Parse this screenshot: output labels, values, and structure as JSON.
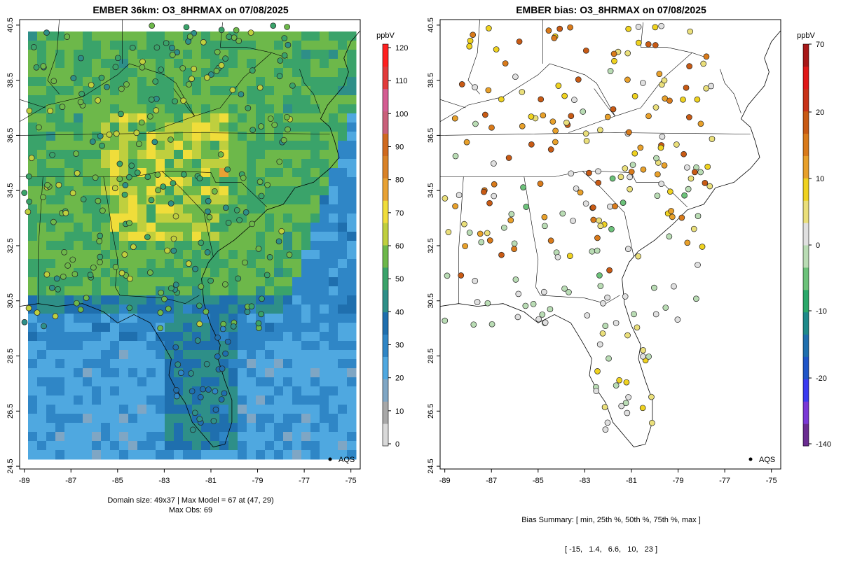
{
  "left_panel": {
    "title": "EMBER 36km: O3_8HRMAX on 07/08/2025",
    "footer_line1": "Domain size: 49x37 | Max Model = 67 at (47, 29)",
    "footer_line2": "Max Obs: 69",
    "legend_label": "AQS",
    "unit": "ppbV",
    "colorbar_ticks": [
      "0",
      "10",
      "20",
      "30",
      "40",
      "50",
      "60",
      "70",
      "80",
      "90",
      "100",
      "110",
      "120"
    ],
    "colorbar_colors": [
      "#d9d9d9",
      "#a8a8a8",
      "#7fa6c4",
      "#4fa8e0",
      "#2f86c6",
      "#1f6fae",
      "#2e8f88",
      "#3aa36a",
      "#6db84a",
      "#bfcf3e",
      "#f0dd3a",
      "#e8a234",
      "#d98227",
      "#d06a1f",
      "#c9607a",
      "#d45c92",
      "#e23a3a",
      "#ff2020"
    ]
  },
  "right_panel": {
    "title": "EMBER bias: O3_8HRMAX on 07/08/2025",
    "footer_line1": "Bias Summary: [ min, 25th %, 50th %, 75th %, max ]",
    "footer_line2": "[ -15,   1.4,   6.6,   10,   23 ]",
    "legend_label": "AQS",
    "unit": "ppbV",
    "colorbar_ticks": [
      "-140",
      "-20",
      "-10",
      "0",
      "10",
      "20",
      "70"
    ],
    "colorbar_colors": [
      "#6a2c91",
      "#7a38d6",
      "#3a3af0",
      "#1f55c8",
      "#1f6fae",
      "#1e8a8a",
      "#2aa86a",
      "#6cc27a",
      "#b9dcb4",
      "#e0e0e0",
      "#eadf7a",
      "#efd21f",
      "#e8a02a",
      "#d97a1a",
      "#c85a14",
      "#c83218",
      "#e01818",
      "#a81818"
    ]
  },
  "axes": {
    "x_ticks": [
      "-89",
      "-87",
      "-85",
      "-83",
      "-81",
      "-79",
      "-77",
      "-75"
    ],
    "y_ticks": [
      "24.5",
      "26.5",
      "28.5",
      "30.5",
      "32.5",
      "34.5",
      "36.5",
      "38.5",
      "40.5"
    ]
  }
}
